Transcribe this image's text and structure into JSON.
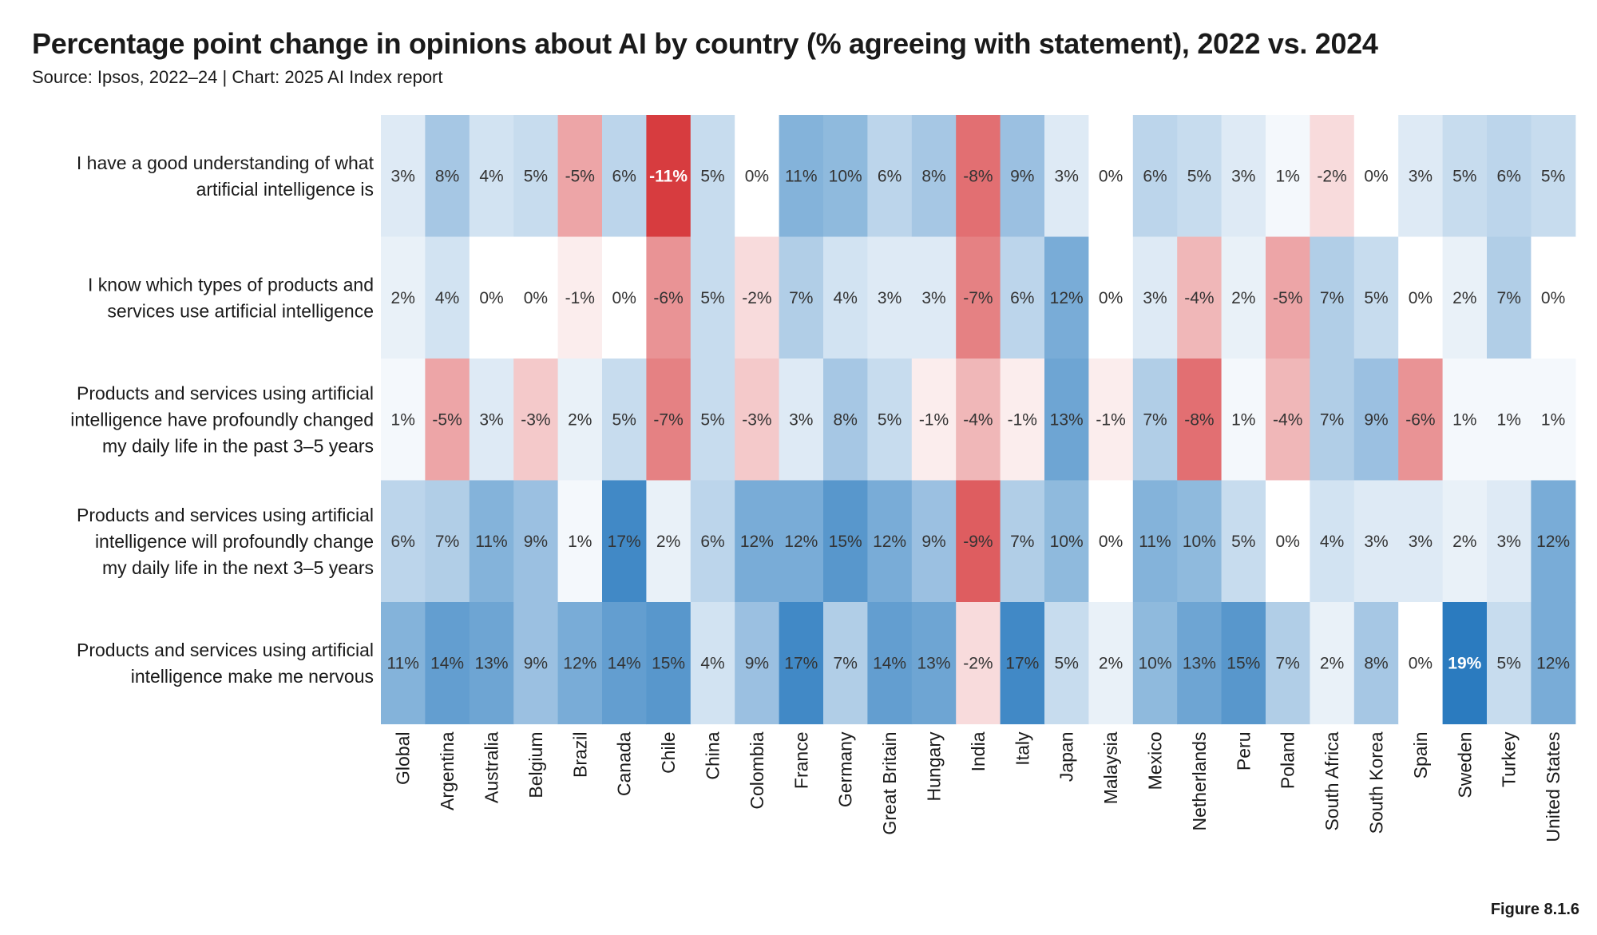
{
  "title": "Percentage point change in opinions about AI by country (% agreeing with statement), 2022 vs. 2024",
  "subtitle": "Source: Ipsos, 2022–24 | Chart: 2025 AI Index report",
  "figure_label": "Figure 8.1.6",
  "colors": {
    "negative": "#d73c3f",
    "positive": "#2b7bbf",
    "neutral": "#ffffff",
    "text_dark": "#333333",
    "text_light": "#ffffff"
  },
  "chart_data": {
    "type": "heatmap",
    "value_format": "percent",
    "scale_max": 19,
    "x_categories": [
      "Global",
      "Argentina",
      "Australia",
      "Belgium",
      "Brazil",
      "Canada",
      "Chile",
      "China",
      "Colombia",
      "France",
      "Germany",
      "Great Britain",
      "Hungary",
      "India",
      "Italy",
      "Japan",
      "Malaysia",
      "Mexico",
      "Netherlands",
      "Peru",
      "Poland",
      "South Africa",
      "South Korea",
      "Spain",
      "Sweden",
      "Turkey",
      "United States"
    ],
    "y_categories": [
      [
        "I have a good understanding of what",
        "artificial intelligence is"
      ],
      [
        "I know which types of products and",
        "services use artificial intelligence"
      ],
      [
        "Products and services using artificial",
        "intelligence have profoundly changed",
        "my daily life in the past 3–5 years"
      ],
      [
        "Products and services using artificial",
        "intelligence will profoundly change",
        "my daily life in the next 3–5 years"
      ],
      [
        "Products and services using artificial",
        "intelligence make me nervous"
      ]
    ],
    "values": [
      [
        3,
        8,
        4,
        5,
        -5,
        6,
        -11,
        5,
        0,
        11,
        10,
        6,
        8,
        -8,
        9,
        3,
        0,
        6,
        5,
        3,
        1,
        -2,
        0,
        3,
        5,
        6,
        5
      ],
      [
        2,
        4,
        0,
        0,
        -1,
        0,
        -6,
        5,
        -2,
        7,
        4,
        3,
        3,
        -7,
        6,
        12,
        0,
        3,
        -4,
        2,
        -5,
        7,
        5,
        0,
        2,
        7,
        0
      ],
      [
        1,
        -5,
        3,
        -3,
        2,
        5,
        -7,
        5,
        -3,
        3,
        8,
        5,
        -1,
        -4,
        -1,
        13,
        -1,
        7,
        -8,
        1,
        -4,
        7,
        9,
        -6,
        1,
        1,
        1
      ],
      [
        6,
        7,
        11,
        9,
        1,
        17,
        2,
        6,
        12,
        12,
        15,
        12,
        9,
        -9,
        7,
        10,
        0,
        11,
        10,
        5,
        0,
        4,
        3,
        3,
        2,
        3,
        12
      ],
      [
        11,
        14,
        13,
        9,
        12,
        14,
        15,
        4,
        9,
        17,
        7,
        14,
        13,
        -2,
        17,
        5,
        2,
        10,
        13,
        15,
        7,
        2,
        8,
        0,
        19,
        5,
        12
      ]
    ]
  }
}
